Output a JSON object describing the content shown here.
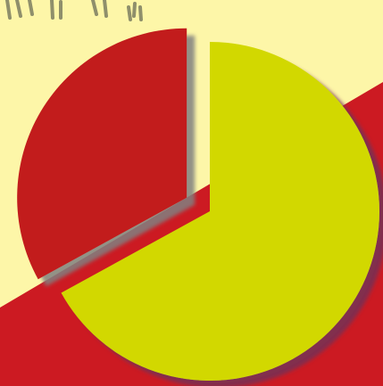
{
  "chart_data": {
    "type": "pie",
    "title": "",
    "exploded": true,
    "drop_shadow": true,
    "slices": [
      {
        "value": 33,
        "color": "#c21d1d"
      },
      {
        "value": 67,
        "color": "#d2d800"
      }
    ]
  },
  "decor": {
    "background_color": "#fdf6a8",
    "band_color": "#cc1a22",
    "scribble_color": "#8f8f6b"
  }
}
